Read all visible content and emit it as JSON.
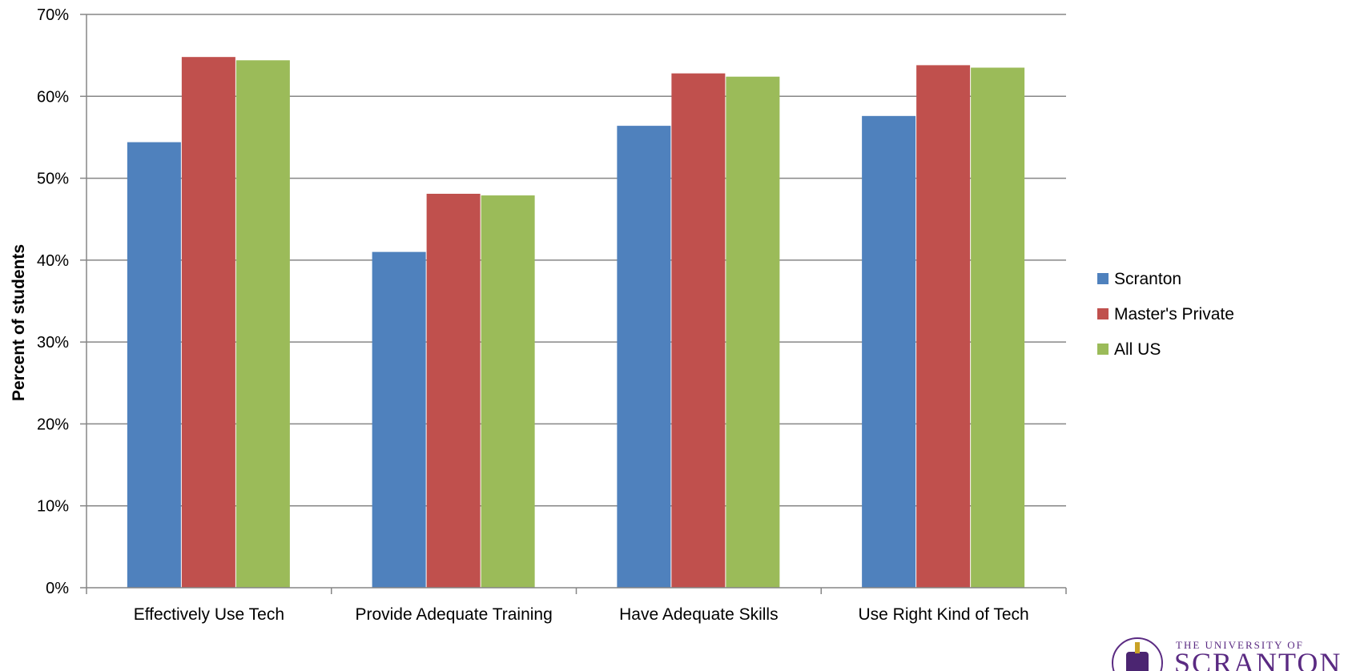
{
  "chart_data": {
    "type": "bar",
    "title": "",
    "xlabel": "",
    "ylabel": "Percent of students",
    "ylim": [
      0,
      70
    ],
    "yticks": [
      "0%",
      "10%",
      "20%",
      "30%",
      "40%",
      "50%",
      "60%",
      "70%"
    ],
    "grid": true,
    "legend_position": "right",
    "categories": [
      "Effectively Use Tech",
      "Provide Adequate Training",
      "Have Adequate Skills",
      "Use Right Kind of Tech"
    ],
    "series": [
      {
        "name": "Scranton",
        "color": "#4f81bd",
        "values": [
          54.4,
          41.0,
          56.4,
          57.6
        ]
      },
      {
        "name": "Master's Private",
        "color": "#c0504d",
        "values": [
          64.8,
          48.1,
          62.8,
          63.8
        ]
      },
      {
        "name": "All US",
        "color": "#9bbb59",
        "values": [
          64.4,
          47.9,
          62.4,
          63.5
        ]
      }
    ]
  },
  "logo": {
    "line1": "THE UNIVERSITY OF",
    "line2": "SCRANTON"
  }
}
